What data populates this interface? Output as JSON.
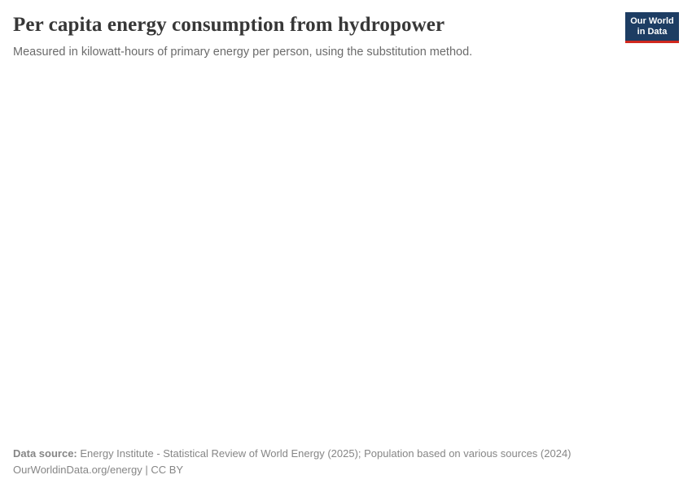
{
  "header": {
    "title": "Per capita energy consumption from hydropower",
    "subtitle": "Measured in kilowatt-hours of primary energy per person, using the substitution method."
  },
  "logo": {
    "line1": "Our World",
    "line2": "in Data",
    "background_color": "#1d3d63",
    "stripe_color": "#d1281e",
    "text_color": "#ffffff"
  },
  "chart_data": {
    "type": "line",
    "title": "Per capita energy consumption from hydropower",
    "subtitle": "Measured in kilowatt-hours of primary energy per person, using the substitution method.",
    "series": [],
    "plot_area_rendered": false
  },
  "footer": {
    "data_source_label": "Data source:",
    "data_source_text": "Energy Institute - Statistical Review of World Energy (2025); Population based on various sources (2024)",
    "url": "OurWorldinData.org/energy",
    "separator": " | ",
    "license": "CC BY"
  },
  "colors": {
    "background": "#ffffff",
    "title_text": "#373737",
    "subtitle_text": "#6b6b6b",
    "footer_text": "#868686",
    "logo_navy": "#1d3d63",
    "logo_red": "#d1281e"
  }
}
